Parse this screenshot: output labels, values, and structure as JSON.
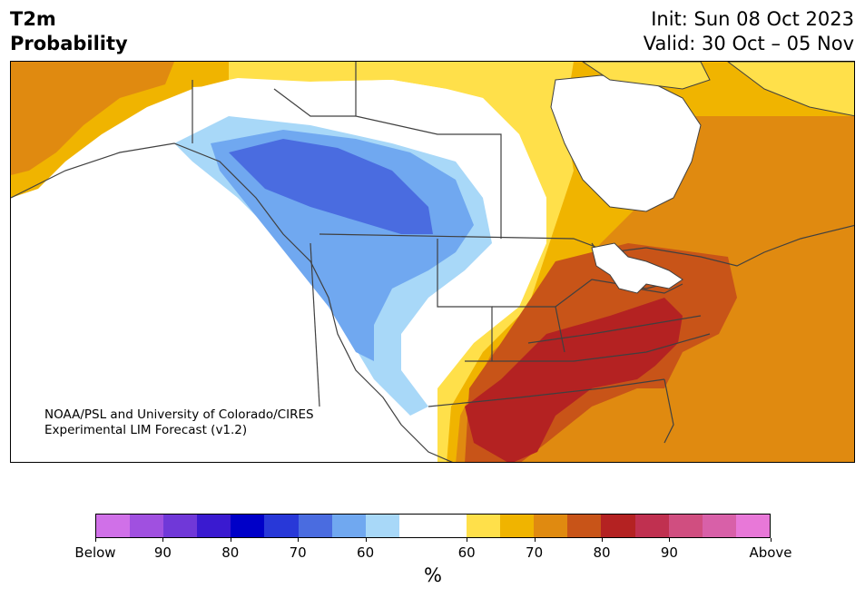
{
  "header": {
    "title_line1": "T2m",
    "title_line2": "Probability",
    "init_text": "Init: Sun 08 Oct 2023",
    "valid_text": "Valid: 30 Oct – 05 Nov"
  },
  "credit": {
    "line1": "NOAA/PSL and University of Colorado/CIRES",
    "line2": "Experimental LIM Forecast (v1.2)"
  },
  "colorbar": {
    "colors": [
      "#d070e8",
      "#a050e0",
      "#7038d8",
      "#3a1ad0",
      "#0000c8",
      "#2838d8",
      "#4a6ce0",
      "#70a8f0",
      "#a8d8f8",
      "#ffffff",
      "#ffffff",
      "#ffe04a",
      "#f0b400",
      "#e08a10",
      "#c85418",
      "#b42222",
      "#c03050",
      "#d04e80",
      "#d860a8",
      "#e878d8"
    ],
    "ticks": [
      {
        "label": "Below",
        "value": "below"
      },
      {
        "label": "90",
        "value": 90
      },
      {
        "label": "80",
        "value": 80
      },
      {
        "label": "70",
        "value": 70
      },
      {
        "label": "60",
        "value": 60
      },
      {
        "label": "60",
        "value": 60
      },
      {
        "label": "70",
        "value": 70
      },
      {
        "label": "80",
        "value": 80
      },
      {
        "label": "90",
        "value": 90
      },
      {
        "label": "Above",
        "value": "above"
      }
    ],
    "unit": "%"
  },
  "map_colors": {
    "below_60": "#a8d8f8",
    "below_70": "#70a8f0",
    "below_80": "#4a6ce0",
    "above_50": "#ffe04a",
    "above_60": "#f0b400",
    "above_70": "#e08a10",
    "above_80": "#c85418",
    "above_90": "#b42222",
    "border": "#404040"
  }
}
